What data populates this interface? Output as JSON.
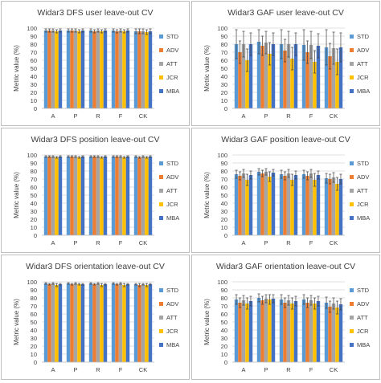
{
  "legend": {
    "items": [
      {
        "label": "STD",
        "color": "#5b9bd5"
      },
      {
        "label": "ADV",
        "color": "#ed7d31"
      },
      {
        "label": "ATT",
        "color": "#a5a5a5"
      },
      {
        "label": "JCR",
        "color": "#ffc000"
      },
      {
        "label": "MBA",
        "color": "#4472c4"
      }
    ]
  },
  "chart_data": [
    {
      "type": "bar",
      "title": "Widar3 DFS user leave-out CV",
      "ylabel": "Metric value (%)",
      "ylim": [
        0,
        100
      ],
      "yticks": [
        0,
        10,
        20,
        30,
        40,
        50,
        60,
        70,
        80,
        90,
        100
      ],
      "categories": [
        "A",
        "P",
        "R",
        "F",
        "CK"
      ],
      "series": [
        {
          "name": "STD",
          "values": [
            97,
            97,
            97,
            97,
            96
          ],
          "errors": [
            2,
            2,
            2,
            2,
            3
          ]
        },
        {
          "name": "ADV",
          "values": [
            97,
            97,
            96,
            96,
            96
          ],
          "errors": [
            2,
            2,
            2,
            2,
            3
          ]
        },
        {
          "name": "ATT",
          "values": [
            97,
            97,
            97,
            97,
            96
          ],
          "errors": [
            2,
            2,
            2,
            2,
            3
          ]
        },
        {
          "name": "JCR",
          "values": [
            96,
            96,
            96,
            96,
            95
          ],
          "errors": [
            2,
            2,
            2,
            2,
            3
          ]
        },
        {
          "name": "MBA",
          "values": [
            97,
            97,
            97,
            97,
            96
          ],
          "errors": [
            2,
            2,
            2,
            2,
            3
          ]
        }
      ]
    },
    {
      "type": "bar",
      "title": "Widar3 GAF user leave-out CV",
      "ylabel": "Metric value (%)",
      "ylim": [
        0,
        100
      ],
      "yticks": [
        0,
        10,
        20,
        30,
        40,
        50,
        60,
        70,
        80,
        90,
        100
      ],
      "categories": [
        "A",
        "P",
        "R",
        "F",
        "CK"
      ],
      "series": [
        {
          "name": "STD",
          "values": [
            80,
            83,
            80,
            79,
            76
          ],
          "errors": [
            18,
            15,
            18,
            19,
            22
          ]
        },
        {
          "name": "ADV",
          "values": [
            70,
            78,
            72,
            70,
            65
          ],
          "errors": [
            14,
            12,
            14,
            14,
            16
          ]
        },
        {
          "name": "ATT",
          "values": [
            80,
            82,
            80,
            79,
            75
          ],
          "errors": [
            16,
            14,
            16,
            17,
            20
          ]
        },
        {
          "name": "JCR",
          "values": [
            60,
            68,
            62,
            58,
            58
          ],
          "errors": [
            14,
            14,
            14,
            14,
            16
          ]
        },
        {
          "name": "MBA",
          "values": [
            80,
            80,
            80,
            78,
            76
          ],
          "errors": [
            14,
            14,
            14,
            15,
            18
          ]
        }
      ]
    },
    {
      "type": "bar",
      "title": "Widar3 DFS position leave-out CV",
      "ylabel": "Metric value (%)",
      "ylim": [
        0,
        100
      ],
      "yticks": [
        0,
        10,
        20,
        30,
        40,
        50,
        60,
        70,
        80,
        90,
        100
      ],
      "categories": [
        "A",
        "P",
        "R",
        "F",
        "CK"
      ],
      "series": [
        {
          "name": "STD",
          "values": [
            98,
            98,
            98,
            98,
            98
          ],
          "errors": [
            1,
            1,
            1,
            1,
            1
          ]
        },
        {
          "name": "ADV",
          "values": [
            98,
            98,
            98,
            98,
            97
          ],
          "errors": [
            1,
            1,
            1,
            1,
            1
          ]
        },
        {
          "name": "ATT",
          "values": [
            98,
            98,
            98,
            98,
            98
          ],
          "errors": [
            1,
            1,
            1,
            1,
            1
          ]
        },
        {
          "name": "JCR",
          "values": [
            97,
            97,
            97,
            97,
            97
          ],
          "errors": [
            1,
            1,
            1,
            1,
            1
          ]
        },
        {
          "name": "MBA",
          "values": [
            98,
            98,
            98,
            98,
            98
          ],
          "errors": [
            1,
            1,
            1,
            1,
            1
          ]
        }
      ]
    },
    {
      "type": "bar",
      "title": "Widar3 GAF position leave-out CV",
      "ylabel": "Metric value (%)",
      "ylim": [
        0,
        100
      ],
      "yticks": [
        0,
        10,
        20,
        30,
        40,
        50,
        60,
        70,
        80,
        90,
        100
      ],
      "categories": [
        "A",
        "P",
        "R",
        "F",
        "CK"
      ],
      "series": [
        {
          "name": "STD",
          "values": [
            76,
            79,
            76,
            76,
            71
          ],
          "errors": [
            5,
            4,
            5,
            5,
            6
          ]
        },
        {
          "name": "ADV",
          "values": [
            74,
            77,
            74,
            74,
            70
          ],
          "errors": [
            5,
            4,
            5,
            5,
            6
          ]
        },
        {
          "name": "ATT",
          "values": [
            77,
            79,
            77,
            77,
            72
          ],
          "errors": [
            5,
            4,
            5,
            5,
            6
          ]
        },
        {
          "name": "JCR",
          "values": [
            69,
            73,
            69,
            69,
            64
          ],
          "errors": [
            7,
            6,
            7,
            8,
            8
          ]
        },
        {
          "name": "MBA",
          "values": [
            75,
            78,
            75,
            75,
            70
          ],
          "errors": [
            5,
            4,
            5,
            5,
            6
          ]
        }
      ]
    },
    {
      "type": "bar",
      "title": "Widar3 DFS orientation leave-out CV",
      "ylabel": "Metric value (%)",
      "ylim": [
        0,
        100
      ],
      "yticks": [
        0,
        10,
        20,
        30,
        40,
        50,
        60,
        70,
        80,
        90,
        100
      ],
      "categories": [
        "A",
        "P",
        "R",
        "F",
        "CK"
      ],
      "series": [
        {
          "name": "STD",
          "values": [
            98,
            98,
            98,
            98,
            97
          ],
          "errors": [
            1,
            1,
            1,
            1,
            1
          ]
        },
        {
          "name": "ADV",
          "values": [
            97,
            97,
            97,
            97,
            96
          ],
          "errors": [
            1,
            1,
            1,
            1,
            2
          ]
        },
        {
          "name": "ATT",
          "values": [
            98,
            98,
            98,
            98,
            97
          ],
          "errors": [
            1,
            1,
            1,
            1,
            1
          ]
        },
        {
          "name": "JCR",
          "values": [
            96,
            97,
            96,
            96,
            96
          ],
          "errors": [
            2,
            1,
            2,
            2,
            2
          ]
        },
        {
          "name": "MBA",
          "values": [
            97,
            97,
            97,
            97,
            97
          ],
          "errors": [
            1,
            1,
            1,
            1,
            1
          ]
        }
      ]
    },
    {
      "type": "bar",
      "title": "Widar3 GAF orientation leave-out CV",
      "ylabel": "Metric value (%)",
      "ylim": [
        0,
        100
      ],
      "yticks": [
        0,
        10,
        20,
        30,
        40,
        50,
        60,
        70,
        80,
        90,
        100
      ],
      "categories": [
        "A",
        "P",
        "R",
        "F",
        "CK"
      ],
      "series": [
        {
          "name": "STD",
          "values": [
            78,
            80,
            78,
            78,
            74
          ],
          "errors": [
            6,
            5,
            6,
            6,
            7
          ]
        },
        {
          "name": "ADV",
          "values": [
            74,
            77,
            74,
            74,
            69
          ],
          "errors": [
            6,
            5,
            6,
            6,
            7
          ]
        },
        {
          "name": "ATT",
          "values": [
            77,
            79,
            77,
            77,
            73
          ],
          "errors": [
            6,
            5,
            6,
            6,
            7
          ]
        },
        {
          "name": "JCR",
          "values": [
            73,
            78,
            73,
            73,
            68
          ],
          "errors": [
            7,
            6,
            7,
            7,
            8
          ]
        },
        {
          "name": "MBA",
          "values": [
            76,
            79,
            76,
            76,
            72
          ],
          "errors": [
            6,
            5,
            6,
            6,
            7
          ]
        }
      ]
    }
  ]
}
